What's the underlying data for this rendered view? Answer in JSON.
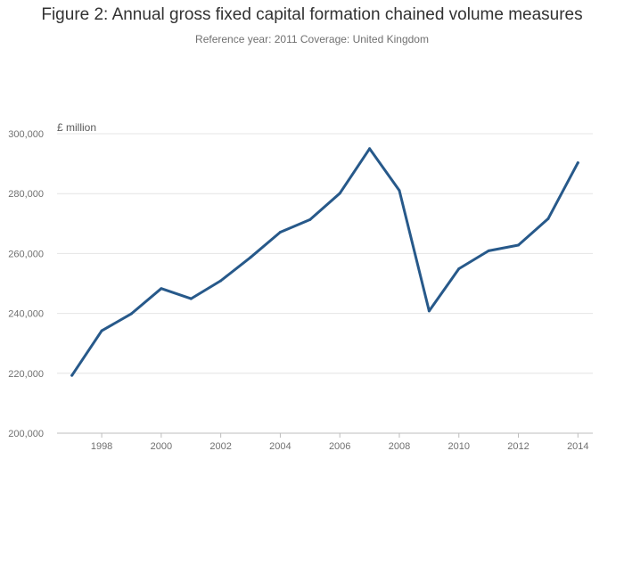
{
  "header": {
    "title": "Figure 2: Annual gross fixed capital formation chained volume measures",
    "subtitle": "Reference year: 2011 Coverage: United Kingdom"
  },
  "chart_data": {
    "type": "line",
    "ylabel": "£ million",
    "xlabel": "",
    "ylim": [
      200000,
      300000
    ],
    "xlim": [
      1996.5,
      2014.5
    ],
    "y_ticks": [
      200000,
      220000,
      240000,
      260000,
      280000,
      300000
    ],
    "y_tick_labels": [
      "200,000",
      "220,000",
      "240,000",
      "260,000",
      "280,000",
      "300,000"
    ],
    "x_ticks": [
      1998,
      2000,
      2002,
      2004,
      2006,
      2008,
      2010,
      2012,
      2014
    ],
    "x_tick_labels": [
      "1998",
      "2000",
      "2002",
      "2004",
      "2006",
      "2008",
      "2010",
      "2012",
      "2014"
    ],
    "grid": "horizontal",
    "series": [
      {
        "color": "#27598a",
        "x": [
          1997,
          1998,
          1999,
          2000,
          2001,
          2002,
          2003,
          2004,
          2005,
          2006,
          2007,
          2008,
          2009,
          2010,
          2011,
          2012,
          2013,
          2014
        ],
        "values": [
          219300,
          234200,
          239900,
          248300,
          244900,
          250900,
          258700,
          267100,
          271300,
          280100,
          295000,
          281000,
          240800,
          254900,
          260900,
          262800,
          271600,
          290300
        ]
      }
    ]
  }
}
